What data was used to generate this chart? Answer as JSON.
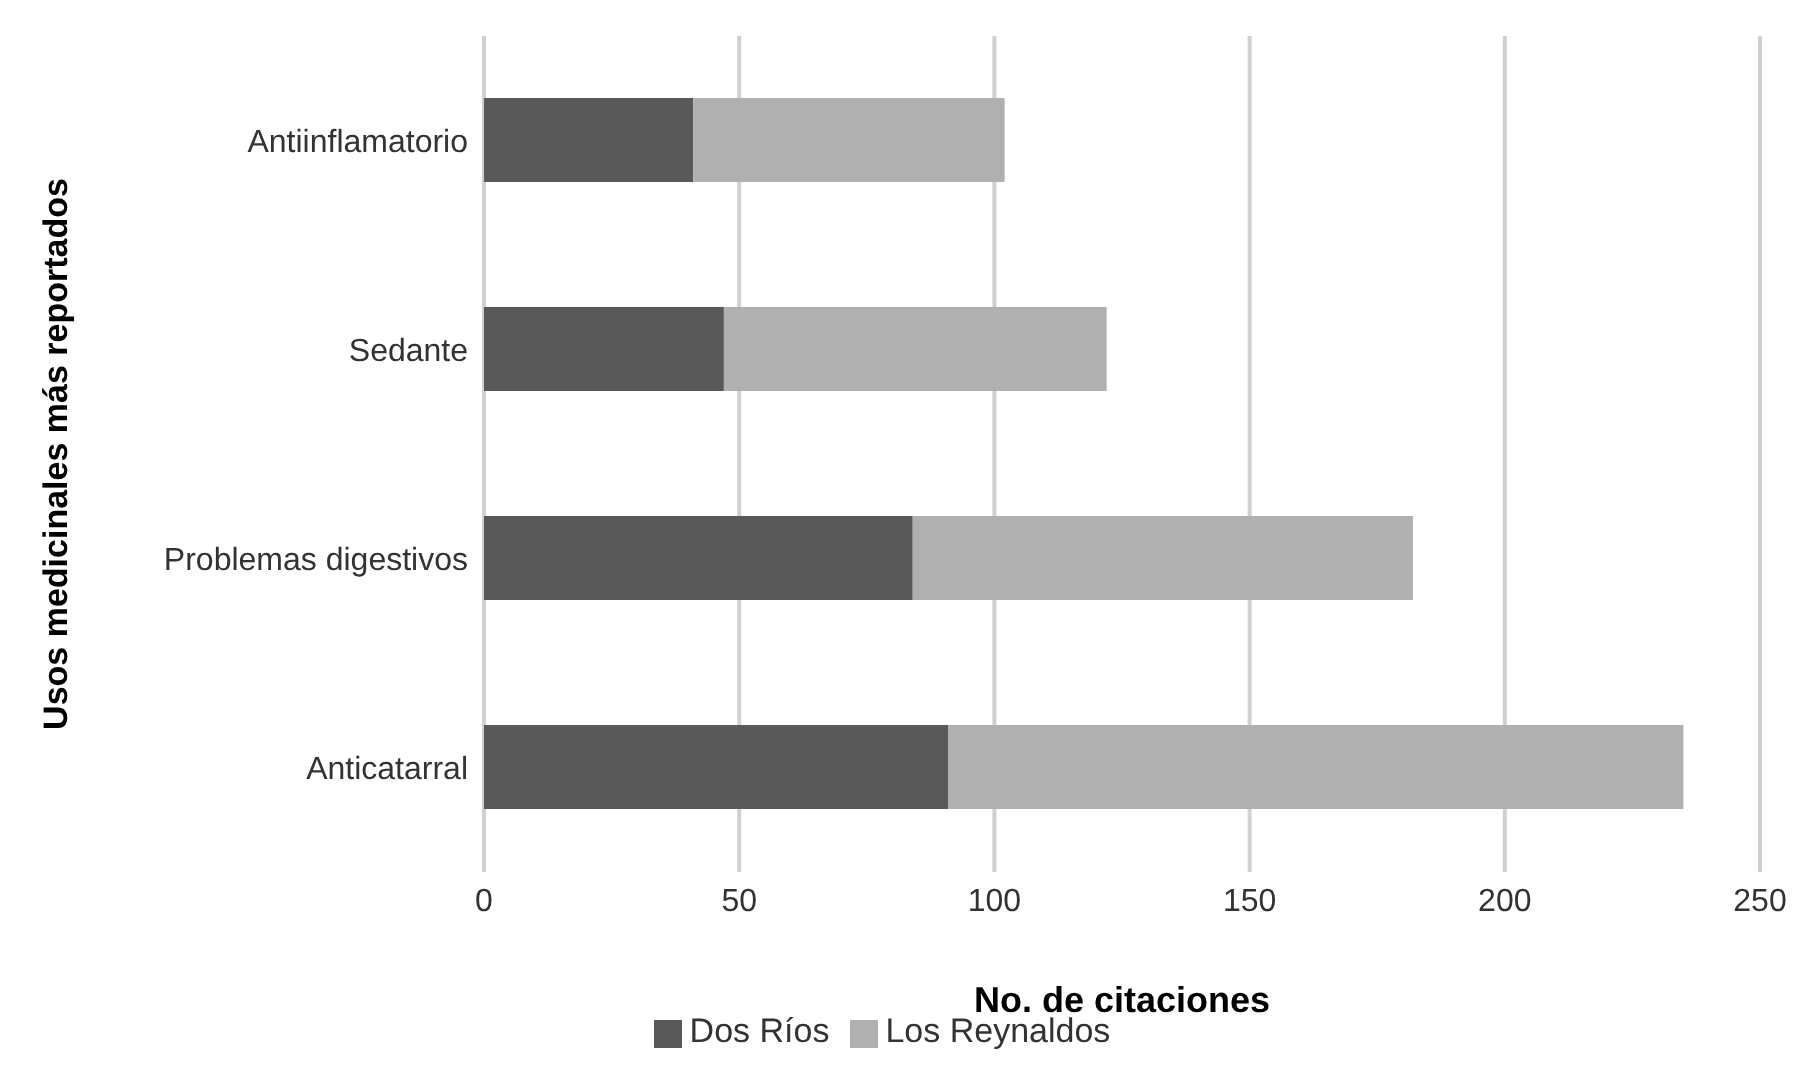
{
  "chart_data": {
    "type": "bar",
    "orientation": "horizontal",
    "stacked": true,
    "xlabel": "No. de citaciones",
    "ylabel": "Usos medicinales más reportados",
    "categories": [
      "Antiinflamatorio",
      "Sedante",
      "Problemas digestivos",
      "Anticatarral"
    ],
    "series": [
      {
        "name": "Dos Ríos",
        "color": "#595959",
        "values": [
          41,
          47,
          84,
          91
        ]
      },
      {
        "name": "Los Reynaldos",
        "color": "#b0b0b0",
        "values": [
          61,
          75,
          98,
          144
        ]
      }
    ],
    "xlim": [
      0,
      250
    ],
    "xticks": [
      0,
      50,
      100,
      150,
      200,
      250
    ],
    "grid": "x",
    "legend": "bottom"
  }
}
